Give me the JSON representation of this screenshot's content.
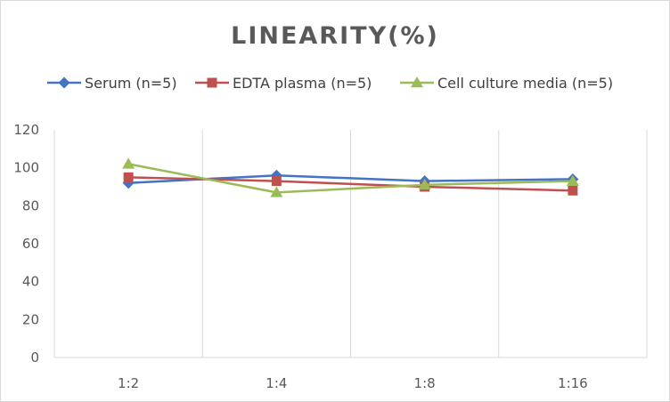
{
  "chart_data": {
    "type": "line",
    "title": "LINEARITY(%)",
    "xlabel": "",
    "ylabel": "",
    "categories": [
      "1:2",
      "1:4",
      "1:8",
      "1:16"
    ],
    "ylim": [
      0,
      120
    ],
    "yticks": [
      0,
      20,
      40,
      60,
      80,
      100,
      120
    ],
    "grid": "vertical",
    "legend_position": "top",
    "series": [
      {
        "name": "Serum (n=5)",
        "values": [
          92,
          96,
          93,
          94
        ],
        "color": "#4472c4",
        "marker": "diamond"
      },
      {
        "name": "EDTA plasma (n=5)",
        "values": [
          95,
          93,
          90,
          88
        ],
        "color": "#c0504d",
        "marker": "square"
      },
      {
        "name": "Cell culture media (n=5)",
        "values": [
          102,
          87,
          91,
          93
        ],
        "color": "#9bbb59",
        "marker": "triangle"
      }
    ]
  }
}
